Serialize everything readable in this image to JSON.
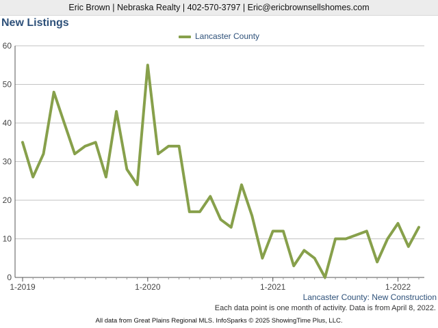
{
  "header": {
    "contact": "Eric Brown | Nebraska Realty | 402-570-3797 | Eric@ericbrownsellshomes.com"
  },
  "chart_data": {
    "type": "line",
    "title": "New Listings",
    "xlabel": "",
    "ylabel": "",
    "ylim": [
      0,
      60
    ],
    "yticks": [
      0,
      10,
      20,
      30,
      40,
      50,
      60
    ],
    "xticks": [
      "1-2019",
      "1-2020",
      "1-2021",
      "1-2022"
    ],
    "x_start": "1-2019",
    "x_end": "3-2022",
    "grid": true,
    "legend_position": "top-center",
    "color": "#87a04b",
    "series": [
      {
        "name": "Lancaster County",
        "x": [
          "1-2019",
          "2-2019",
          "3-2019",
          "4-2019",
          "5-2019",
          "6-2019",
          "7-2019",
          "8-2019",
          "9-2019",
          "10-2019",
          "11-2019",
          "12-2019",
          "1-2020",
          "2-2020",
          "3-2020",
          "4-2020",
          "5-2020",
          "6-2020",
          "7-2020",
          "8-2020",
          "9-2020",
          "10-2020",
          "11-2020",
          "12-2020",
          "1-2021",
          "2-2021",
          "3-2021",
          "4-2021",
          "5-2021",
          "6-2021",
          "7-2021",
          "8-2021",
          "9-2021",
          "10-2021",
          "11-2021",
          "12-2021",
          "1-2022",
          "2-2022",
          "3-2022"
        ],
        "values": [
          35,
          26,
          32,
          48,
          40,
          32,
          34,
          35,
          26,
          43,
          28,
          24,
          55,
          32,
          34,
          34,
          17,
          17,
          21,
          15,
          13,
          24,
          16,
          5,
          12,
          12,
          3,
          7,
          5,
          0,
          10,
          10,
          11,
          12,
          4,
          10,
          14,
          8,
          13
        ]
      }
    ]
  },
  "footer": {
    "series_caption": "Lancaster County: New Construction",
    "note": "Each data point is one month of activity. Data is from April 8, 2022.",
    "source": "All data from Great Plains Regional MLS. InfoSparks © 2025 ShowingTime Plus, LLC."
  }
}
